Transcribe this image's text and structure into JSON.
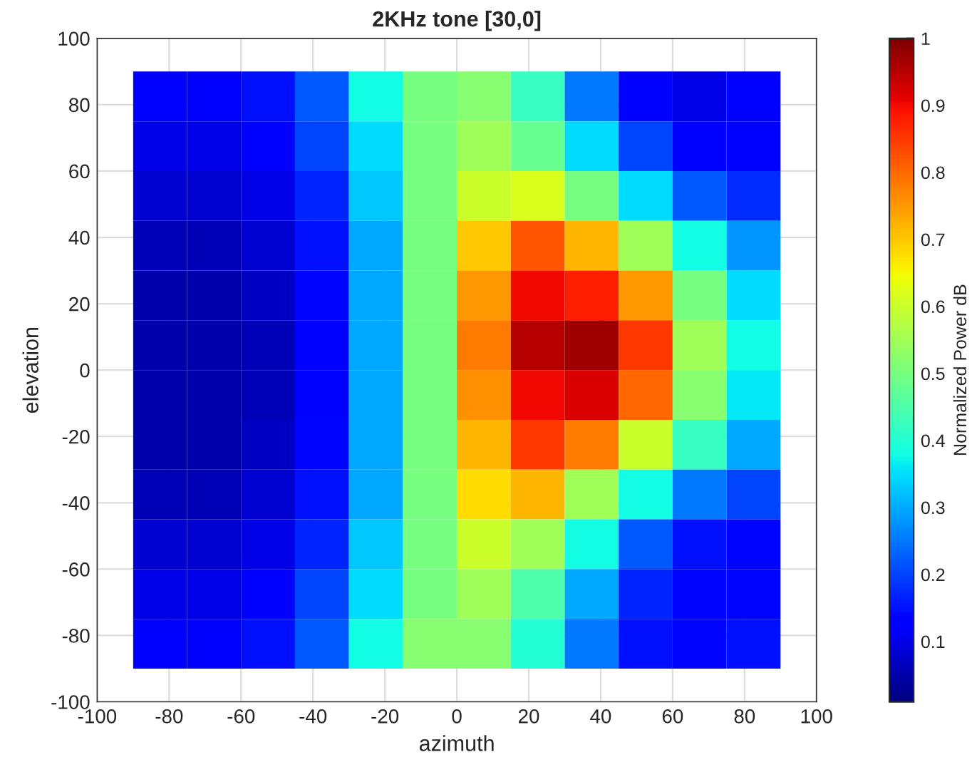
{
  "chart_data": {
    "type": "heatmap",
    "title": "2KHz tone [30,0]",
    "xlabel": "azimuth",
    "ylabel": "elevation",
    "clabel": "Normalized Power dB",
    "x": [
      -82.5,
      -67.5,
      -52.5,
      -37.5,
      -22.5,
      -7.5,
      7.5,
      22.5,
      37.5,
      52.5,
      67.5,
      82.5
    ],
    "y": [
      82.5,
      67.5,
      52.5,
      37.5,
      22.5,
      7.5,
      -7.5,
      -22.5,
      -37.5,
      -52.5,
      -67.5,
      -82.5
    ],
    "cells": [
      [
        0.12,
        0.12,
        0.15,
        0.22,
        0.38,
        0.5,
        0.52,
        0.42,
        0.25,
        0.12,
        0.1,
        0.12
      ],
      [
        0.1,
        0.1,
        0.13,
        0.2,
        0.35,
        0.5,
        0.55,
        0.48,
        0.35,
        0.2,
        0.12,
        0.12
      ],
      [
        0.08,
        0.08,
        0.1,
        0.17,
        0.33,
        0.5,
        0.6,
        0.62,
        0.5,
        0.35,
        0.22,
        0.18
      ],
      [
        0.06,
        0.06,
        0.08,
        0.15,
        0.3,
        0.5,
        0.7,
        0.82,
        0.72,
        0.55,
        0.38,
        0.28
      ],
      [
        0.05,
        0.05,
        0.07,
        0.14,
        0.3,
        0.5,
        0.75,
        0.9,
        0.88,
        0.75,
        0.5,
        0.35
      ],
      [
        0.05,
        0.05,
        0.06,
        0.13,
        0.3,
        0.5,
        0.78,
        0.95,
        0.97,
        0.85,
        0.55,
        0.38
      ],
      [
        0.05,
        0.05,
        0.06,
        0.13,
        0.3,
        0.5,
        0.76,
        0.9,
        0.92,
        0.8,
        0.52,
        0.36
      ],
      [
        0.05,
        0.05,
        0.07,
        0.14,
        0.3,
        0.5,
        0.72,
        0.85,
        0.78,
        0.6,
        0.42,
        0.3
      ],
      [
        0.06,
        0.06,
        0.08,
        0.15,
        0.3,
        0.5,
        0.68,
        0.72,
        0.55,
        0.38,
        0.25,
        0.2
      ],
      [
        0.08,
        0.08,
        0.1,
        0.17,
        0.33,
        0.5,
        0.6,
        0.55,
        0.38,
        0.22,
        0.15,
        0.14
      ],
      [
        0.1,
        0.1,
        0.13,
        0.2,
        0.35,
        0.5,
        0.55,
        0.45,
        0.3,
        0.17,
        0.14,
        0.14
      ],
      [
        0.12,
        0.12,
        0.15,
        0.22,
        0.38,
        0.52,
        0.52,
        0.4,
        0.25,
        0.15,
        0.14,
        0.15
      ]
    ],
    "xlim": [
      -100,
      100
    ],
    "ylim": [
      -100,
      100
    ],
    "xticks": [
      -100,
      -80,
      -60,
      -40,
      -20,
      0,
      20,
      40,
      60,
      80,
      100
    ],
    "yticks": [
      -100,
      -80,
      -60,
      -40,
      -20,
      0,
      20,
      40,
      60,
      80,
      100
    ],
    "clim": [
      0.01,
      1
    ],
    "cticks": [
      0.1,
      0.2,
      0.3,
      0.4,
      0.5,
      0.6,
      0.7,
      0.8,
      0.9,
      1
    ],
    "grid": true
  }
}
